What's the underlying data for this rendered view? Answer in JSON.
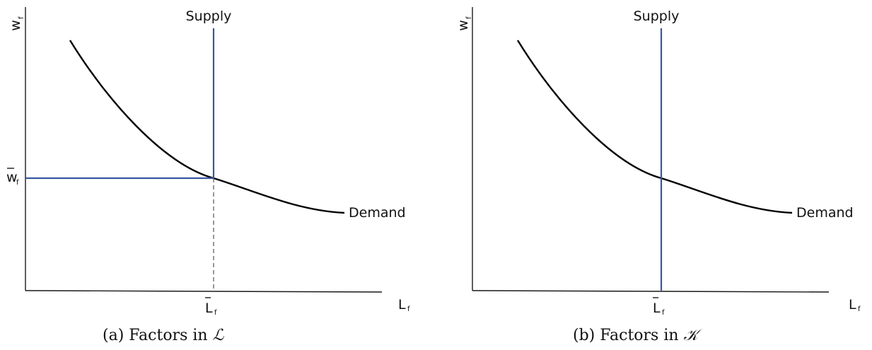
{
  "panel_a": {
    "y_axis": {
      "main": "w",
      "sub": "f"
    },
    "x_axis": {
      "main": "L",
      "sub": "f"
    },
    "supply_label": "Supply",
    "demand_label": "Demand",
    "eq_wage": {
      "main": "w",
      "sub": "f"
    },
    "eq_quantity": {
      "main": "L",
      "sub": "f"
    },
    "caption": "(a) Factors in ",
    "caption_symbol": "ℒ",
    "colors": {
      "supply": "#3b56a0",
      "demand": "#000000"
    }
  },
  "panel_b": {
    "y_axis": {
      "main": "w",
      "sub": "f"
    },
    "x_axis": {
      "main": "L",
      "sub": "f"
    },
    "supply_label": "Supply",
    "demand_label": "Demand",
    "eq_quantity": {
      "main": "L",
      "sub": "f"
    },
    "caption": "(b) Factors in ",
    "caption_symbol": "𝒦",
    "colors": {
      "supply": "#3b56a0",
      "demand": "#000000"
    }
  }
}
